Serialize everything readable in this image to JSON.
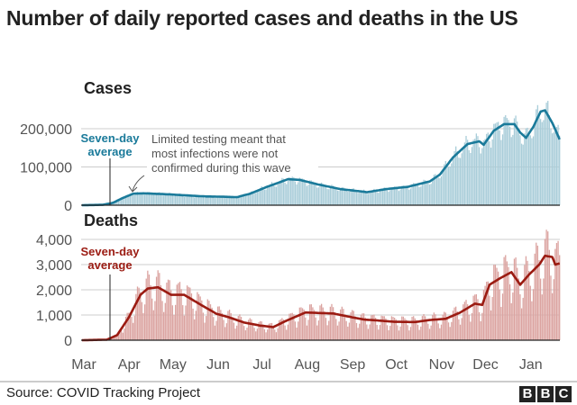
{
  "title": "Number of daily reported cases and deaths in the US",
  "source": "Source: COVID Tracking Project",
  "logo": [
    "B",
    "B",
    "C"
  ],
  "colors": {
    "cases_line": "#1a7a9a",
    "cases_bar": "#a9cdd9",
    "deaths_line": "#9b1b12",
    "deaths_bar": "#dba3a0",
    "grid": "#cccccc",
    "axis_text": "#555555"
  },
  "chart_data": [
    {
      "type": "bar",
      "title": "Cases",
      "y_ticks": [
        {
          "value": 0,
          "label": "0"
        },
        {
          "value": 100000,
          "label": "100,000"
        },
        {
          "value": 200000,
          "label": "200,000"
        }
      ],
      "ylim": [
        0,
        260000
      ],
      "grid": true,
      "series_label": [
        "Seven-day",
        "average"
      ],
      "annotation": [
        "Limited testing meant that",
        "most infections were not",
        "confirmed during this wave"
      ],
      "seven_day_average": [
        [
          "2020-03-01",
          0
        ],
        [
          "2020-03-15",
          1000
        ],
        [
          "2020-03-22",
          6000
        ],
        [
          "2020-03-29",
          19000
        ],
        [
          "2020-04-05",
          30000
        ],
        [
          "2020-04-12",
          31000
        ],
        [
          "2020-04-26",
          29000
        ],
        [
          "2020-05-10",
          26000
        ],
        [
          "2020-05-24",
          23000
        ],
        [
          "2020-06-07",
          22000
        ],
        [
          "2020-06-15",
          21000
        ],
        [
          "2020-06-24",
          30000
        ],
        [
          "2020-07-05",
          47000
        ],
        [
          "2020-07-20",
          68000
        ],
        [
          "2020-07-28",
          66000
        ],
        [
          "2020-08-10",
          54000
        ],
        [
          "2020-08-25",
          42000
        ],
        [
          "2020-09-08",
          36000
        ],
        [
          "2020-09-12",
          34000
        ],
        [
          "2020-09-25",
          42000
        ],
        [
          "2020-10-10",
          48000
        ],
        [
          "2020-10-25",
          62000
        ],
        [
          "2020-11-01",
          80000
        ],
        [
          "2020-11-10",
          125000
        ],
        [
          "2020-11-20",
          160000
        ],
        [
          "2020-11-28",
          167000
        ],
        [
          "2020-12-01",
          158000
        ],
        [
          "2020-12-08",
          195000
        ],
        [
          "2020-12-15",
          212000
        ],
        [
          "2020-12-22",
          212000
        ],
        [
          "2020-12-26",
          190000
        ],
        [
          "2020-12-30",
          176000
        ],
        [
          "2021-01-04",
          205000
        ],
        [
          "2021-01-09",
          245000
        ],
        [
          "2021-01-12",
          248000
        ],
        [
          "2021-01-17",
          215000
        ],
        [
          "2021-01-22",
          172000
        ]
      ]
    },
    {
      "type": "bar",
      "title": "Deaths",
      "y_ticks": [
        {
          "value": 0,
          "label": "0"
        },
        {
          "value": 1000,
          "label": "1,000"
        },
        {
          "value": 2000,
          "label": "2,000"
        },
        {
          "value": 3000,
          "label": "3,000"
        },
        {
          "value": 4000,
          "label": "4,000"
        }
      ],
      "ylim": [
        0,
        4400
      ],
      "grid": true,
      "series_label": [
        "Seven-day",
        "average"
      ],
      "seven_day_average": [
        [
          "2020-03-01",
          0
        ],
        [
          "2020-03-18",
          20
        ],
        [
          "2020-03-25",
          200
        ],
        [
          "2020-04-02",
          900
        ],
        [
          "2020-04-10",
          1800
        ],
        [
          "2020-04-15",
          2050
        ],
        [
          "2020-04-22",
          2100
        ],
        [
          "2020-05-01",
          1800
        ],
        [
          "2020-05-10",
          1800
        ],
        [
          "2020-05-20",
          1450
        ],
        [
          "2020-06-01",
          1050
        ],
        [
          "2020-06-10",
          900
        ],
        [
          "2020-06-20",
          700
        ],
        [
          "2020-07-01",
          580
        ],
        [
          "2020-07-10",
          520
        ],
        [
          "2020-07-18",
          750
        ],
        [
          "2020-08-01",
          1100
        ],
        [
          "2020-08-10",
          1080
        ],
        [
          "2020-08-20",
          1060
        ],
        [
          "2020-09-01",
          920
        ],
        [
          "2020-09-10",
          820
        ],
        [
          "2020-09-20",
          780
        ],
        [
          "2020-10-01",
          730
        ],
        [
          "2020-10-15",
          720
        ],
        [
          "2020-10-25",
          800
        ],
        [
          "2020-11-05",
          850
        ],
        [
          "2020-11-15",
          1100
        ],
        [
          "2020-11-25",
          1450
        ],
        [
          "2020-11-30",
          1400
        ],
        [
          "2020-12-05",
          2200
        ],
        [
          "2020-12-12",
          2450
        ],
        [
          "2020-12-20",
          2700
        ],
        [
          "2020-12-26",
          2200
        ],
        [
          "2021-01-01",
          2600
        ],
        [
          "2021-01-08",
          3000
        ],
        [
          "2021-01-12",
          3350
        ],
        [
          "2021-01-17",
          3300
        ],
        [
          "2021-01-19",
          3000
        ],
        [
          "2021-01-22",
          3050
        ]
      ]
    }
  ],
  "x_ticks": [
    "Mar",
    "Apr",
    "May",
    "Jun",
    "Jul",
    "Aug",
    "Sep",
    "Oct",
    "Nov",
    "Dec",
    "Jan"
  ]
}
